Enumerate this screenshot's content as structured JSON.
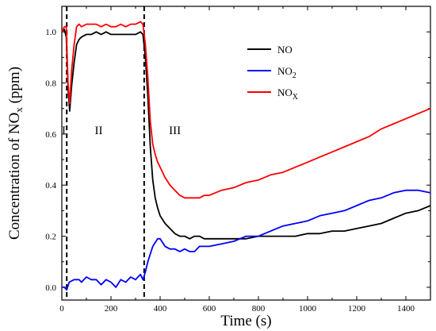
{
  "chart_data": {
    "type": "line",
    "title": "",
    "xlabel": "Time (s)",
    "ylabel": "Concentration of NO",
    "ylabel_sub": "x",
    "ylabel_suffix": " (ppm)",
    "xlim": [
      0,
      1500
    ],
    "ylim": [
      -0.05,
      1.1
    ],
    "xticks": [
      0,
      200,
      400,
      600,
      800,
      1000,
      1200,
      1400
    ],
    "yticks": [
      0.0,
      0.2,
      0.4,
      0.6,
      0.8,
      1.0
    ],
    "ytick_labels": [
      "0.0",
      "0.2",
      "0.4",
      "0.6",
      "0.8",
      "1.0"
    ],
    "grid": false,
    "legend_position": "top-right",
    "vlines": [
      20,
      335
    ],
    "regions": [
      {
        "label": "I",
        "x": 8,
        "y": 0.6
      },
      {
        "label": "II",
        "x": 150,
        "y": 0.6
      },
      {
        "label": "III",
        "x": 460,
        "y": 0.6
      }
    ],
    "series": [
      {
        "name": "NO",
        "subscript": "",
        "color": "#000000",
        "points": [
          [
            0,
            1.0
          ],
          [
            10,
            1.01
          ],
          [
            18,
            0.98
          ],
          [
            25,
            0.78
          ],
          [
            32,
            0.69
          ],
          [
            40,
            0.79
          ],
          [
            50,
            0.88
          ],
          [
            60,
            0.95
          ],
          [
            70,
            0.97
          ],
          [
            80,
            0.98
          ],
          [
            100,
            0.99
          ],
          [
            120,
            0.99
          ],
          [
            140,
            1.0
          ],
          [
            160,
            0.99
          ],
          [
            180,
            1.0
          ],
          [
            200,
            0.99
          ],
          [
            220,
            0.99
          ],
          [
            240,
            0.99
          ],
          [
            260,
            0.99
          ],
          [
            280,
            0.99
          ],
          [
            300,
            0.99
          ],
          [
            320,
            1.0
          ],
          [
            330,
            0.99
          ],
          [
            340,
            0.9
          ],
          [
            350,
            0.75
          ],
          [
            360,
            0.55
          ],
          [
            370,
            0.42
          ],
          [
            380,
            0.35
          ],
          [
            390,
            0.31
          ],
          [
            400,
            0.28
          ],
          [
            420,
            0.25
          ],
          [
            440,
            0.23
          ],
          [
            460,
            0.21
          ],
          [
            480,
            0.2
          ],
          [
            500,
            0.2
          ],
          [
            520,
            0.19
          ],
          [
            540,
            0.2
          ],
          [
            560,
            0.2
          ],
          [
            580,
            0.19
          ],
          [
            600,
            0.19
          ],
          [
            650,
            0.19
          ],
          [
            700,
            0.19
          ],
          [
            750,
            0.19
          ],
          [
            800,
            0.2
          ],
          [
            850,
            0.2
          ],
          [
            900,
            0.2
          ],
          [
            950,
            0.2
          ],
          [
            1000,
            0.21
          ],
          [
            1050,
            0.21
          ],
          [
            1100,
            0.22
          ],
          [
            1150,
            0.22
          ],
          [
            1200,
            0.23
          ],
          [
            1250,
            0.24
          ],
          [
            1300,
            0.25
          ],
          [
            1350,
            0.27
          ],
          [
            1400,
            0.29
          ],
          [
            1450,
            0.3
          ],
          [
            1500,
            0.32
          ]
        ]
      },
      {
        "name": "NO",
        "subscript": "2",
        "color": "#0000ff",
        "points": [
          [
            0,
            0.0
          ],
          [
            10,
            0.0
          ],
          [
            20,
            -0.01
          ],
          [
            30,
            0.02
          ],
          [
            50,
            0.03
          ],
          [
            70,
            0.03
          ],
          [
            80,
            0.02
          ],
          [
            100,
            0.04
          ],
          [
            120,
            0.03
          ],
          [
            140,
            0.03
          ],
          [
            160,
            0.01
          ],
          [
            180,
            0.03
          ],
          [
            200,
            0.02
          ],
          [
            220,
            0.0
          ],
          [
            240,
            0.03
          ],
          [
            260,
            0.02
          ],
          [
            280,
            0.04
          ],
          [
            300,
            0.03
          ],
          [
            320,
            0.05
          ],
          [
            330,
            0.03
          ],
          [
            340,
            0.06
          ],
          [
            350,
            0.1
          ],
          [
            370,
            0.16
          ],
          [
            390,
            0.19
          ],
          [
            400,
            0.19
          ],
          [
            420,
            0.16
          ],
          [
            440,
            0.15
          ],
          [
            460,
            0.15
          ],
          [
            480,
            0.14
          ],
          [
            500,
            0.15
          ],
          [
            520,
            0.14
          ],
          [
            540,
            0.14
          ],
          [
            560,
            0.16
          ],
          [
            580,
            0.16
          ],
          [
            600,
            0.16
          ],
          [
            650,
            0.17
          ],
          [
            700,
            0.18
          ],
          [
            750,
            0.2
          ],
          [
            800,
            0.2
          ],
          [
            850,
            0.22
          ],
          [
            900,
            0.24
          ],
          [
            950,
            0.25
          ],
          [
            1000,
            0.26
          ],
          [
            1050,
            0.28
          ],
          [
            1100,
            0.29
          ],
          [
            1150,
            0.3
          ],
          [
            1200,
            0.32
          ],
          [
            1250,
            0.34
          ],
          [
            1300,
            0.35
          ],
          [
            1350,
            0.37
          ],
          [
            1400,
            0.38
          ],
          [
            1450,
            0.38
          ],
          [
            1500,
            0.37
          ]
        ]
      },
      {
        "name": "NO",
        "subscript": "X",
        "color": "#ff0000",
        "points": [
          [
            0,
            1.0
          ],
          [
            10,
            1.02
          ],
          [
            18,
            1.02
          ],
          [
            25,
            0.8
          ],
          [
            32,
            0.72
          ],
          [
            40,
            0.85
          ],
          [
            50,
            0.95
          ],
          [
            60,
            1.02
          ],
          [
            70,
            1.03
          ],
          [
            80,
            1.02
          ],
          [
            100,
            1.03
          ],
          [
            120,
            1.03
          ],
          [
            140,
            1.03
          ],
          [
            160,
            1.02
          ],
          [
            180,
            1.03
          ],
          [
            200,
            1.02
          ],
          [
            220,
            1.02
          ],
          [
            240,
            1.03
          ],
          [
            260,
            1.02
          ],
          [
            280,
            1.03
          ],
          [
            300,
            1.03
          ],
          [
            320,
            1.04
          ],
          [
            330,
            1.03
          ],
          [
            340,
            0.95
          ],
          [
            350,
            0.82
          ],
          [
            360,
            0.65
          ],
          [
            370,
            0.56
          ],
          [
            380,
            0.52
          ],
          [
            390,
            0.49
          ],
          [
            400,
            0.47
          ],
          [
            420,
            0.43
          ],
          [
            440,
            0.4
          ],
          [
            460,
            0.38
          ],
          [
            480,
            0.36
          ],
          [
            500,
            0.35
          ],
          [
            520,
            0.35
          ],
          [
            540,
            0.35
          ],
          [
            560,
            0.35
          ],
          [
            580,
            0.36
          ],
          [
            600,
            0.36
          ],
          [
            650,
            0.38
          ],
          [
            700,
            0.39
          ],
          [
            750,
            0.41
          ],
          [
            800,
            0.42
          ],
          [
            850,
            0.44
          ],
          [
            900,
            0.45
          ],
          [
            950,
            0.47
          ],
          [
            1000,
            0.49
          ],
          [
            1050,
            0.51
          ],
          [
            1100,
            0.53
          ],
          [
            1150,
            0.55
          ],
          [
            1200,
            0.57
          ],
          [
            1250,
            0.59
          ],
          [
            1300,
            0.62
          ],
          [
            1350,
            0.64
          ],
          [
            1400,
            0.66
          ],
          [
            1450,
            0.68
          ],
          [
            1500,
            0.7
          ]
        ]
      }
    ]
  }
}
